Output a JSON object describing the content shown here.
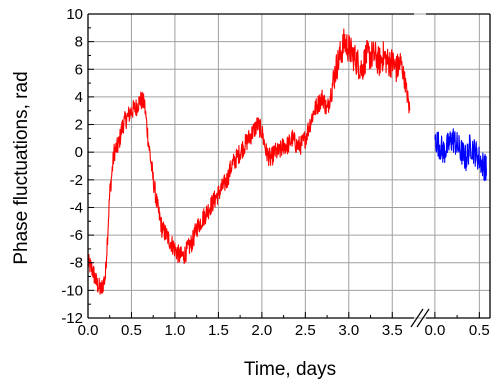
{
  "chart_data": {
    "type": "line",
    "xlabel": "Time, days",
    "ylabel": "Phase fluctuations, rad",
    "grid": true,
    "legend": "none",
    "ylim": [
      -12,
      10
    ],
    "y_ticks": [
      "10",
      "8",
      "6",
      "4",
      "2",
      "0",
      "-2",
      "-4",
      "-6",
      "-8",
      "-10",
      "-12"
    ],
    "panels": [
      {
        "xlim": [
          0.0,
          3.75
        ],
        "x_ticks": [
          "0.0",
          "0.5",
          "1.0",
          "1.5",
          "2.0",
          "2.5",
          "3.0",
          "3.5"
        ]
      },
      {
        "xlim": [
          -0.1,
          0.62
        ],
        "x_ticks": [
          "0.0",
          "0.5"
        ]
      }
    ],
    "series": [
      {
        "color": "#ff0000",
        "panel": 0,
        "x": [
          0.0,
          0.05,
          0.1,
          0.15,
          0.2,
          0.25,
          0.3,
          0.35,
          0.4,
          0.45,
          0.5,
          0.55,
          0.6,
          0.65,
          0.7,
          0.75,
          0.8,
          0.85,
          0.9,
          0.95,
          1.0,
          1.05,
          1.1,
          1.15,
          1.2,
          1.25,
          1.3,
          1.35,
          1.4,
          1.45,
          1.5,
          1.55,
          1.6,
          1.65,
          1.7,
          1.75,
          1.8,
          1.85,
          1.9,
          1.95,
          2.0,
          2.05,
          2.1,
          2.15,
          2.2,
          2.25,
          2.3,
          2.35,
          2.4,
          2.45,
          2.5,
          2.55,
          2.6,
          2.65,
          2.7,
          2.75,
          2.8,
          2.85,
          2.9,
          2.95,
          3.0,
          3.05,
          3.1,
          3.15,
          3.2,
          3.25,
          3.3,
          3.35,
          3.4,
          3.45,
          3.5,
          3.55,
          3.6,
          3.65,
          3.7
        ],
        "y": [
          -8.0,
          -8.5,
          -9.5,
          -10.0,
          -9.0,
          -3.0,
          0.0,
          0.5,
          2.0,
          2.5,
          3.0,
          3.2,
          3.8,
          3.5,
          0.5,
          -2.0,
          -4.0,
          -5.5,
          -6.0,
          -6.5,
          -7.0,
          -7.5,
          -7.5,
          -7.0,
          -6.5,
          -5.5,
          -5.0,
          -4.5,
          -4.0,
          -3.5,
          -3.0,
          -2.5,
          -2.0,
          -1.0,
          -0.5,
          0.0,
          0.5,
          1.0,
          1.5,
          2.0,
          1.5,
          0.0,
          -0.5,
          0.0,
          0.0,
          0.5,
          0.5,
          1.0,
          0.5,
          0.5,
          1.0,
          2.0,
          3.0,
          3.5,
          4.0,
          3.0,
          4.5,
          6.0,
          7.0,
          8.0,
          7.5,
          7.0,
          6.5,
          6.0,
          7.0,
          7.0,
          7.0,
          6.5,
          7.0,
          6.5,
          6.5,
          6.0,
          6.5,
          5.0,
          3.0
        ]
      },
      {
        "color": "#0000ff",
        "panel": 1,
        "x": [
          0.0,
          0.05,
          0.1,
          0.15,
          0.2,
          0.25,
          0.3,
          0.35,
          0.4,
          0.45,
          0.5,
          0.55,
          0.58
        ],
        "y": [
          1.0,
          0.5,
          0.0,
          0.5,
          1.0,
          0.5,
          0.0,
          -0.5,
          0.5,
          0.0,
          -0.5,
          -1.0,
          -1.2
        ]
      }
    ]
  }
}
